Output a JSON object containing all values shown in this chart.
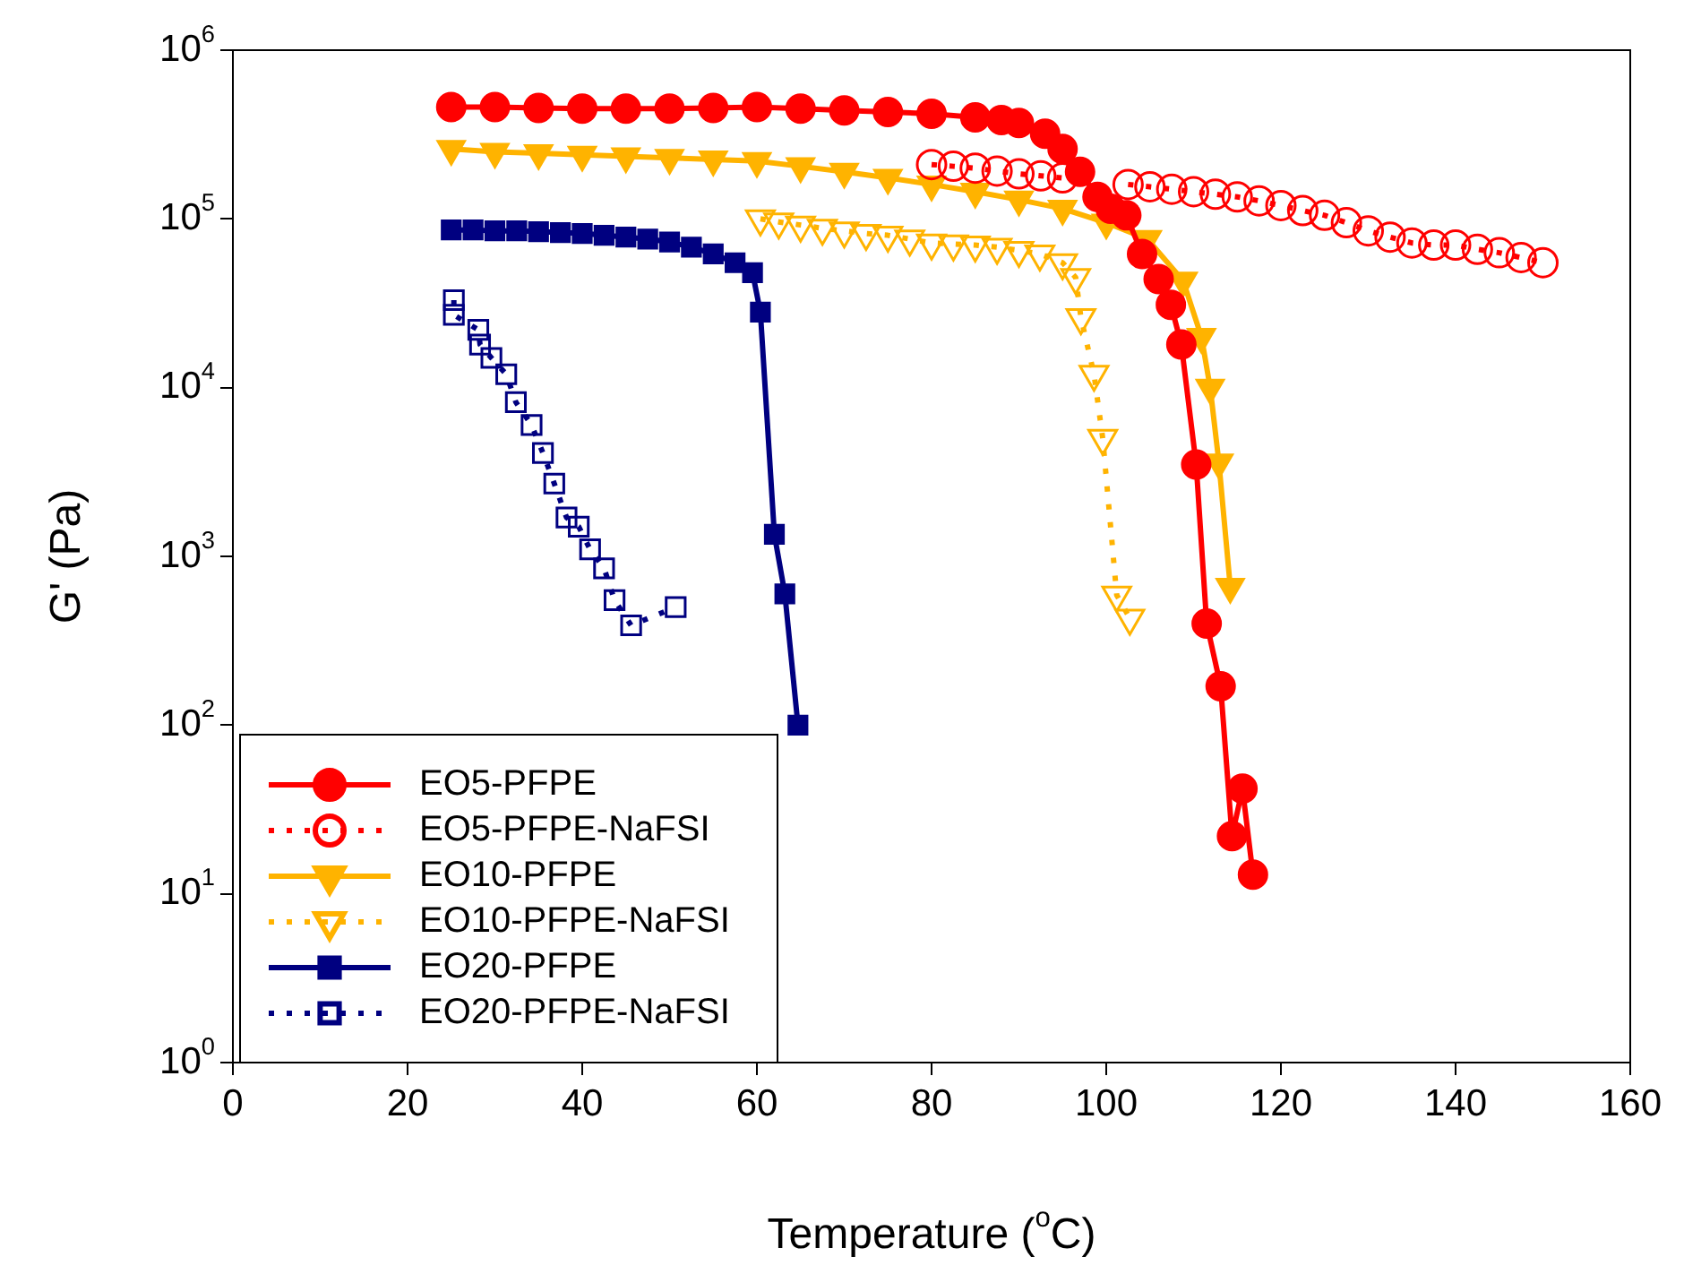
{
  "chart_data": {
    "type": "line",
    "xlabel": "Temperature ($^{o}$C)",
    "ylabel": "G' (Pa)",
    "log": "y",
    "grid": false,
    "legend": "bottom left",
    "xlim": [
      0,
      160
    ],
    "xticks": [
      0,
      20,
      40,
      60,
      80,
      100,
      120,
      140,
      160
    ],
    "ylim": [
      1,
      1000000
    ],
    "yticks": [
      {
        "value": 1,
        "label": "10$^{0}$"
      },
      {
        "value": 10,
        "label": "10$^{1}$"
      },
      {
        "value": 100,
        "label": "10$^{2}$"
      },
      {
        "value": 1000,
        "label": "10$^{3}$"
      },
      {
        "value": 10000,
        "label": "10$^{4}$"
      },
      {
        "value": 100000,
        "label": "10$^{5}$"
      },
      {
        "value": 1000000,
        "label": "10$^{6}$"
      }
    ],
    "series": [
      {
        "name": "EO5-PFPE",
        "color": "#ff0000",
        "marker": "circle",
        "line_style": "solid",
        "x": [
          25,
          30,
          35,
          40,
          45,
          50,
          55,
          60,
          65,
          70,
          75,
          80,
          85,
          88,
          90,
          93,
          95,
          97,
          99,
          100.5,
          102.3,
          104.1,
          106,
          107.4,
          108.6,
          110.3,
          111.5,
          113.1,
          114.4,
          115.6,
          116.8
        ],
        "values": [
          460000,
          460000,
          455000,
          450000,
          450000,
          450000,
          455000,
          460000,
          450000,
          440000,
          430000,
          420000,
          400000,
          385000,
          370000,
          320000,
          260000,
          190000,
          135000,
          115000,
          105000,
          62000,
          44000,
          31000,
          18000,
          3500,
          400,
          170,
          22,
          42,
          13
        ]
      },
      {
        "name": "EO5-PFPE-NaFSI",
        "color": "#ff0000",
        "marker": "circle",
        "line_style": "dotted",
        "x": [
          80,
          82.5,
          85,
          87.5,
          90,
          92.5,
          95,
          97.5,
          100,
          102.5,
          105,
          107.5,
          110,
          112.5,
          115,
          117.5,
          120,
          122.5,
          125,
          127.5,
          130,
          132.5,
          135,
          137.5,
          140,
          142.5,
          145,
          147.5,
          150
        ],
        "values": [
          210000,
          205000,
          200000,
          192000,
          185000,
          180000,
          175000,
          null,
          null,
          160000,
          155000,
          150000,
          145000,
          140000,
          135000,
          128000,
          120000,
          112000,
          105000,
          95000,
          85000,
          78000,
          72000,
          70000,
          70000,
          66000,
          63000,
          59000,
          55000
        ]
      },
      {
        "name": "EO10-PFPE",
        "color": "#ffb300",
        "marker": "triangle",
        "line_style": "solid",
        "x": [
          25,
          30,
          35,
          40,
          45,
          50,
          55,
          60,
          65,
          70,
          75,
          80,
          85,
          90,
          95,
          100,
          104.7,
          108.8,
          110.9,
          111.9,
          112.9,
          114.2
        ],
        "values": [
          260000,
          250000,
          245000,
          240000,
          235000,
          230000,
          225000,
          220000,
          205000,
          190000,
          175000,
          160000,
          145000,
          130000,
          115000,
          95000,
          76000,
          43000,
          20000,
          10000,
          3600,
          660
        ]
      },
      {
        "name": "EO10-PFPE-NaFSI",
        "color": "#ffb300",
        "marker": "triangle",
        "line_style": "dotted",
        "x": [
          60.4,
          62.5,
          65,
          67.5,
          70,
          72.5,
          75,
          77.5,
          80,
          82.5,
          85,
          87.5,
          90,
          92.4,
          95,
          96.5,
          97.1,
          98.6,
          99.6,
          101.2,
          102.7
        ],
        "values": [
          100000,
          96000,
          92000,
          88000,
          85000,
          82000,
          80000,
          76000,
          72000,
          71000,
          70000,
          68000,
          65000,
          62000,
          55000,
          45000,
          26000,
          12000,
          5000,
          590,
          430
        ]
      },
      {
        "name": "EO20-PFPE",
        "color": "#000080",
        "marker": "square",
        "line_style": "solid",
        "x": [
          25,
          27.5,
          30,
          32.5,
          35,
          37.5,
          40,
          42.5,
          45,
          47.5,
          50,
          52.5,
          55,
          57.5,
          59.5,
          60.4,
          62,
          63.2,
          64.7
        ],
        "values": [
          86000,
          86000,
          85000,
          85000,
          84000,
          83000,
          82000,
          80000,
          78000,
          76000,
          73000,
          68000,
          62000,
          55000,
          48000,
          28000,
          1350,
          600,
          100
        ]
      },
      {
        "name": "EO20-PFPE-NaFSI",
        "color": "#000080",
        "marker": "square",
        "line_style": "dotted",
        "x": [
          25.3,
          25.3,
          28.1,
          28.3,
          29.6,
          31.3,
          32.4,
          34.2,
          35.5,
          36.8,
          38.2,
          39.6,
          40.9,
          42.5,
          43.7,
          45.6,
          50.7
        ],
        "values": [
          33000,
          27000,
          22000,
          18000,
          15000,
          12000,
          8200,
          6000,
          4100,
          2700,
          1700,
          1500,
          1100,
          850,
          550,
          390,
          500
        ]
      }
    ]
  }
}
